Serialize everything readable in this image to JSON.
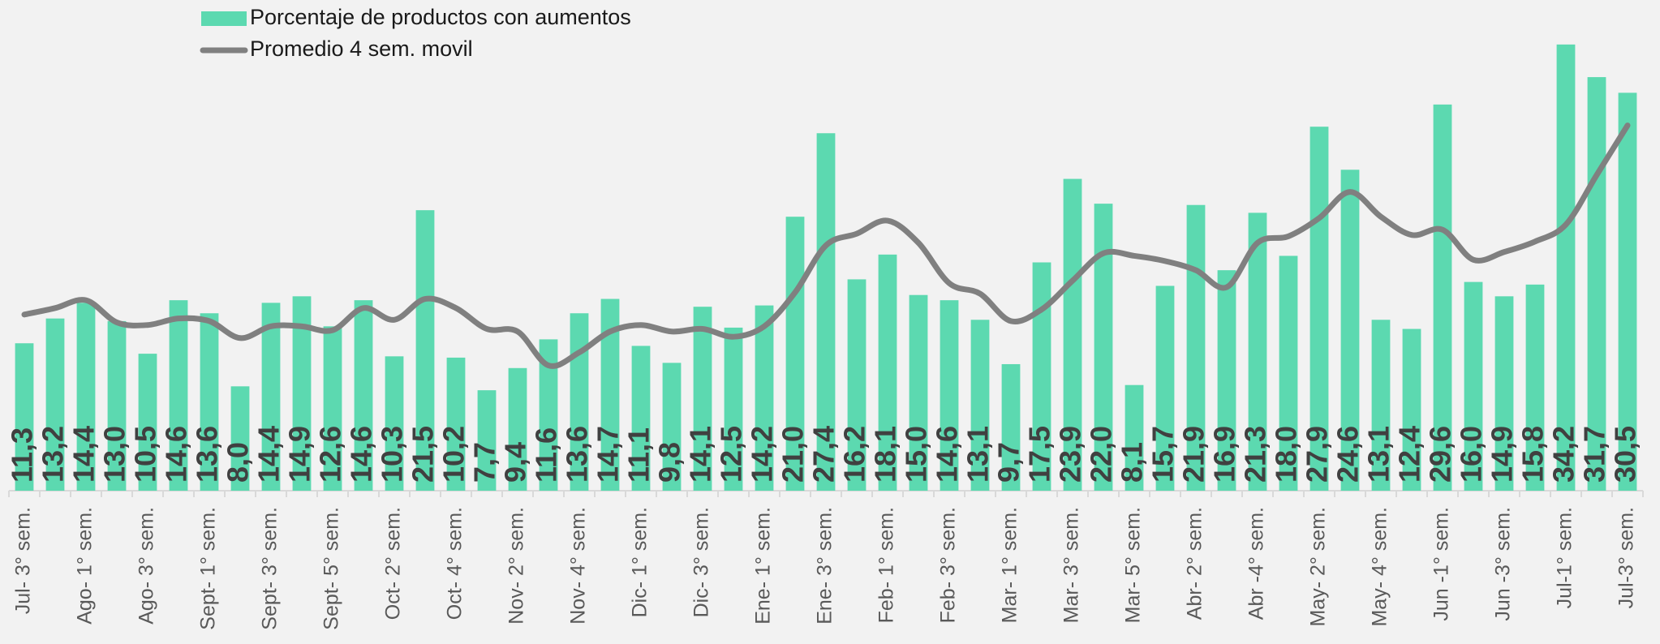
{
  "chart_data": {
    "type": "bar",
    "categories": [
      "Jul- 3° sem.",
      null,
      "Ago- 1° sem.",
      null,
      "Ago- 3° sem.",
      null,
      "Sept- 1° sem.",
      null,
      "Sept- 3° sem.",
      null,
      "Sept- 5° sem.",
      null,
      "Oct- 2° sem.",
      null,
      "Oct- 4° sem.",
      null,
      "Nov- 2° sem.",
      null,
      "Nov- 4° sem.",
      null,
      "Dic- 1° sem.",
      null,
      "Dic- 3° sem.",
      null,
      "Ene- 1° sem.",
      null,
      "Ene- 3° sem.",
      null,
      "Feb- 1° sem.",
      null,
      "Feb- 3° sem.",
      null,
      "Mar- 1° sem.",
      null,
      "Mar- 3° sem.",
      null,
      "Mar- 5° sem.",
      null,
      "Abr- 2° sem.",
      null,
      "Abr -4° sem.",
      null,
      "May- 2° sem.",
      null,
      "May- 4° sem.",
      null,
      "Jun -1° sem.",
      null,
      "Jun -3° sem.",
      null,
      "Jul-1° sem.",
      null,
      "Jul-3° sem."
    ],
    "series": [
      {
        "name": "Porcentaje de productos con aumentos",
        "type": "bar",
        "color": "#5cd9b0",
        "values": [
          11.3,
          13.2,
          14.4,
          13.0,
          10.5,
          14.6,
          13.6,
          8.0,
          14.4,
          14.9,
          12.6,
          14.6,
          10.3,
          21.5,
          10.2,
          7.7,
          9.4,
          11.6,
          13.6,
          14.7,
          11.1,
          9.8,
          14.1,
          12.5,
          14.2,
          21.0,
          27.4,
          16.2,
          18.1,
          15.0,
          14.6,
          13.1,
          9.7,
          17.5,
          23.9,
          22.0,
          8.1,
          15.7,
          21.9,
          16.9,
          21.3,
          18.0,
          27.9,
          24.6,
          13.1,
          12.4,
          29.6,
          16.0,
          14.9,
          15.8,
          34.2,
          31.7,
          30.5
        ],
        "value_labels": [
          "11,3",
          "13,2",
          "14,4",
          "13,0",
          "10,5",
          "14,6",
          "13,6",
          "8,0",
          "14,4",
          "14,9",
          "12,6",
          "14,6",
          "10,3",
          "21,5",
          "10,2",
          "7,7",
          "9,4",
          "11,6",
          "13,6",
          "14,7",
          "11,1",
          "9,8",
          "14,1",
          "12,5",
          "14,2",
          "21,0",
          "27,4",
          "16,2",
          "18,1",
          "15,0",
          "14,6",
          "13,1",
          "9,7",
          "17,5",
          "23,9",
          "22,0",
          "8,1",
          "15,7",
          "21,9",
          "16,9",
          "21,3",
          "18,0",
          "27,9",
          "24,6",
          "13,1",
          "12,4",
          "29,6",
          "16,0",
          "14,9",
          "15,8",
          "34,2",
          "31,7",
          "30,5"
        ]
      },
      {
        "name": "Promedio 4 sem. movil",
        "type": "line",
        "color": "#808080",
        "values": [
          13.5,
          14.0,
          14.6,
          12.9,
          12.7,
          13.2,
          13.0,
          11.7,
          12.6,
          12.6,
          12.3,
          14.0,
          13.1,
          14.7,
          14.0,
          12.4,
          12.2,
          9.6,
          10.6,
          12.2,
          12.7,
          12.2,
          12.4,
          11.8,
          12.6,
          15.2,
          18.8,
          19.7,
          20.7,
          19.0,
          15.9,
          15.1,
          13.0,
          13.9,
          16.1,
          18.2,
          18.0,
          17.6,
          16.9,
          15.6,
          19.0,
          19.5,
          20.9,
          22.9,
          21.0,
          19.6,
          20.0,
          17.7,
          18.3,
          19.1,
          20.4,
          24.2,
          28.0
        ]
      }
    ],
    "ylim": [
      0,
      35
    ]
  }
}
